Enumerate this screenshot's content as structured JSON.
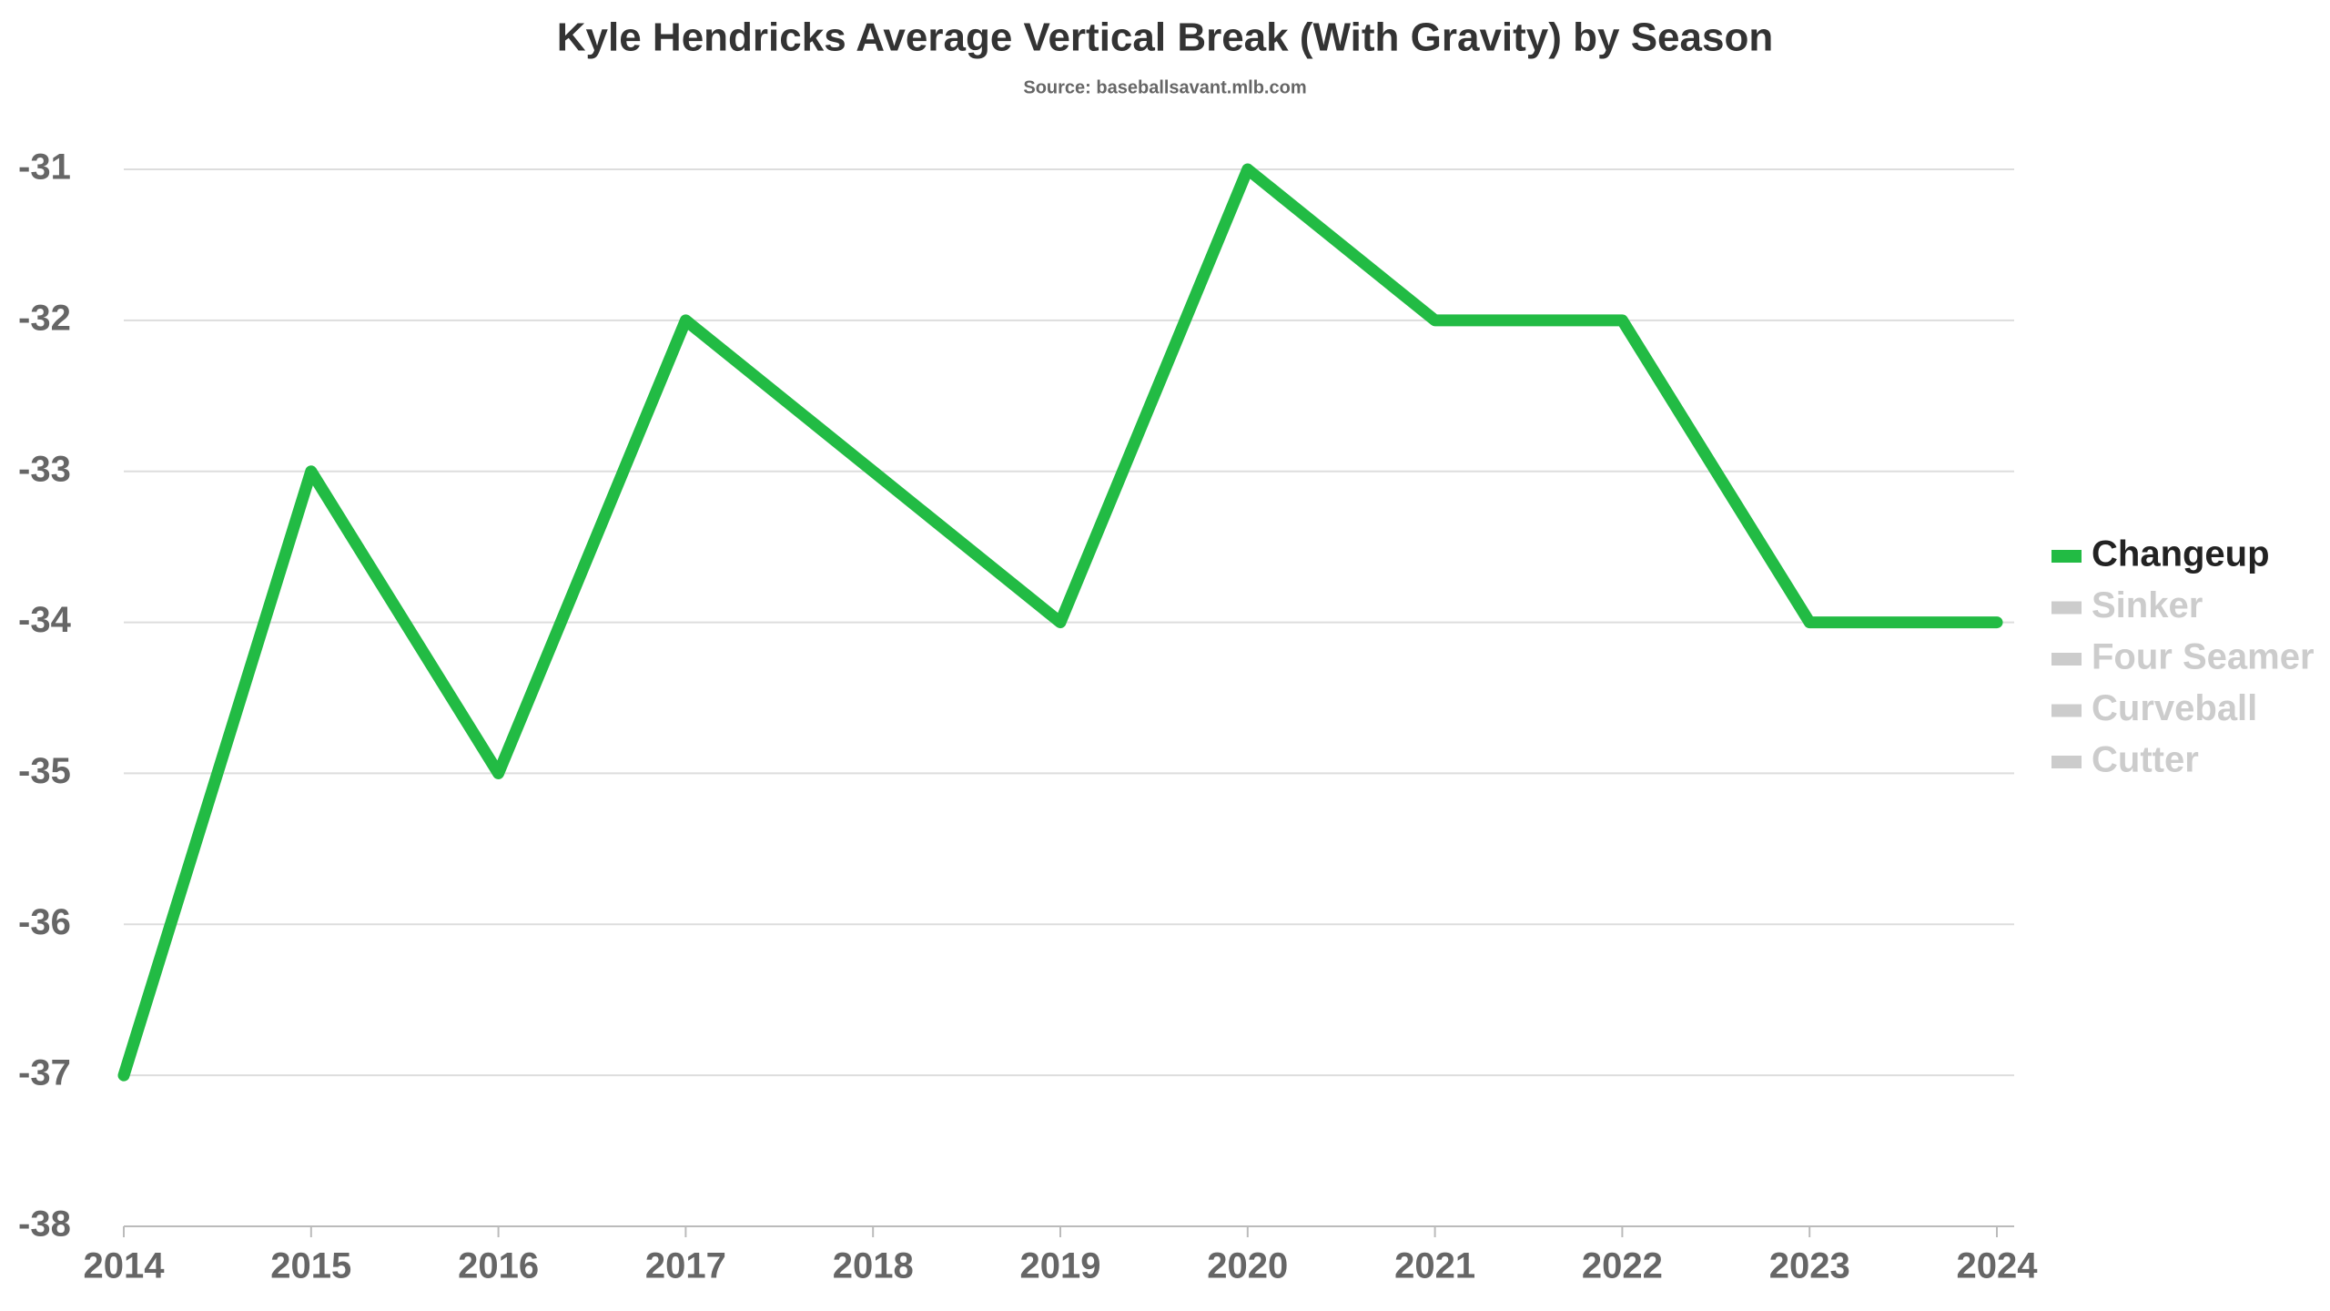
{
  "chart_data": {
    "type": "line",
    "title": "Kyle Hendricks Average Vertical Break (With Gravity) by Season",
    "subtitle": "Source: baseballsavant.mlb.com",
    "x": [
      2014,
      2015,
      2016,
      2017,
      2018,
      2019,
      2020,
      2021,
      2022,
      2023,
      2024
    ],
    "xlim": [
      2014,
      2024
    ],
    "xticks": [
      2014,
      2015,
      2016,
      2017,
      2018,
      2019,
      2020,
      2021,
      2022,
      2023,
      2024
    ],
    "ylim": [
      -38,
      -31
    ],
    "yticks": [
      -38,
      -37,
      -36,
      -35,
      -34,
      -33,
      -32,
      -31
    ],
    "grid": true,
    "legend": "right",
    "series": [
      {
        "name": "Changeup",
        "color": "#22bb44",
        "values": [
          -37,
          -33,
          -35,
          -32,
          -33,
          -34,
          -31,
          -32,
          -32,
          -34,
          -34
        ]
      },
      {
        "name": "Sinker",
        "color": "#cccccc",
        "values": [
          null,
          null,
          null,
          null,
          null,
          null,
          null,
          null,
          null,
          null,
          null
        ]
      },
      {
        "name": "Four Seamer",
        "color": "#cccccc",
        "values": [
          null,
          null,
          null,
          null,
          null,
          null,
          null,
          null,
          null,
          null,
          null
        ]
      },
      {
        "name": "Curveball",
        "color": "#cccccc",
        "values": [
          null,
          null,
          null,
          null,
          null,
          null,
          null,
          null,
          null,
          null,
          null
        ]
      },
      {
        "name": "Cutter",
        "color": "#cccccc",
        "values": [
          null,
          null,
          null,
          null,
          null,
          null,
          null,
          null,
          null,
          null,
          null
        ]
      }
    ]
  }
}
